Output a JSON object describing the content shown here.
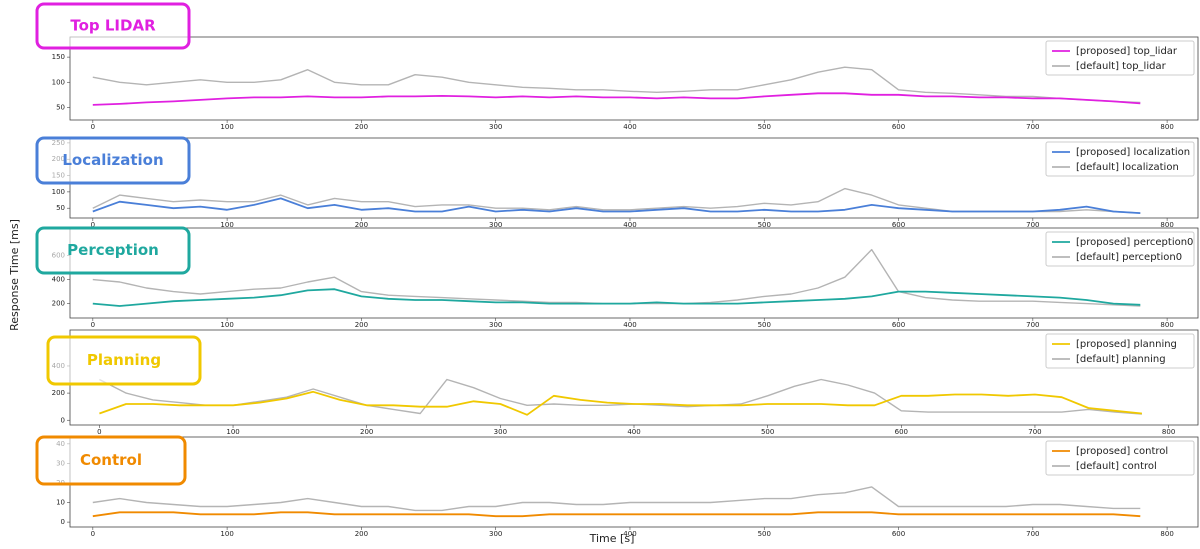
{
  "xlabel": "Time [s]",
  "ylabel": "Response Time [ms]",
  "chart_data": [
    {
      "type": "line",
      "label": "Top LIDAR",
      "x": [
        0,
        20,
        40,
        60,
        80,
        100,
        120,
        140,
        160,
        180,
        200,
        220,
        240,
        260,
        280,
        300,
        320,
        340,
        360,
        380,
        400,
        420,
        440,
        460,
        480,
        500,
        520,
        540,
        560,
        580,
        600,
        620,
        640,
        660,
        680,
        700,
        720,
        740,
        760,
        780
      ],
      "series": [
        {
          "name": "[proposed] top_lidar",
          "color": "#e020e0",
          "values": [
            55,
            57,
            60,
            62,
            65,
            68,
            70,
            70,
            72,
            70,
            70,
            72,
            72,
            73,
            72,
            70,
            72,
            70,
            72,
            70,
            70,
            68,
            70,
            68,
            68,
            72,
            75,
            78,
            78,
            75,
            75,
            72,
            72,
            70,
            70,
            68,
            68,
            65,
            62,
            58
          ]
        },
        {
          "name": "[default] top_lidar",
          "color": "#b4b4b4",
          "values": [
            110,
            100,
            95,
            100,
            105,
            100,
            100,
            105,
            125,
            100,
            95,
            95,
            115,
            110,
            100,
            95,
            90,
            88,
            85,
            85,
            82,
            80,
            82,
            85,
            85,
            95,
            105,
            120,
            130,
            125,
            85,
            80,
            78,
            75,
            72,
            72,
            68,
            65,
            62,
            60
          ]
        }
      ],
      "xlim": [
        -17,
        823
      ],
      "xticks": [
        0,
        100,
        200,
        300,
        400,
        500,
        600,
        700,
        800
      ],
      "ylim": [
        25,
        190
      ],
      "yticks": [
        50,
        100,
        150
      ]
    },
    {
      "type": "line",
      "label": "Localization",
      "x": [
        0,
        20,
        40,
        60,
        80,
        100,
        120,
        140,
        160,
        180,
        200,
        220,
        240,
        260,
        280,
        300,
        320,
        340,
        360,
        380,
        400,
        420,
        440,
        460,
        480,
        500,
        520,
        540,
        560,
        580,
        600,
        620,
        640,
        660,
        680,
        700,
        720,
        740,
        760,
        780
      ],
      "series": [
        {
          "name": "[proposed] localization",
          "color": "#4a7fd8",
          "values": [
            40,
            70,
            60,
            50,
            55,
            45,
            60,
            80,
            50,
            60,
            45,
            50,
            40,
            40,
            55,
            40,
            45,
            40,
            50,
            40,
            40,
            45,
            50,
            40,
            40,
            45,
            40,
            40,
            45,
            60,
            50,
            45,
            40,
            40,
            40,
            40,
            45,
            55,
            40,
            35
          ]
        },
        {
          "name": "[default] localization",
          "color": "#b4b4b4",
          "values": [
            50,
            90,
            80,
            70,
            75,
            70,
            70,
            90,
            60,
            80,
            70,
            70,
            55,
            60,
            60,
            50,
            50,
            45,
            55,
            45,
            45,
            50,
            55,
            50,
            55,
            65,
            60,
            70,
            110,
            90,
            60,
            50,
            40,
            40,
            40,
            40,
            40,
            45,
            40,
            35
          ]
        }
      ],
      "xlim": [
        -17,
        823
      ],
      "xticks": [
        0,
        100,
        200,
        300,
        400,
        500,
        600,
        700,
        800
      ],
      "ylim": [
        20,
        265
      ],
      "yticks": [
        50,
        100,
        150,
        200,
        250
      ]
    },
    {
      "type": "line",
      "label": "Perception",
      "x": [
        0,
        20,
        40,
        60,
        80,
        100,
        120,
        140,
        160,
        180,
        200,
        220,
        240,
        260,
        280,
        300,
        320,
        340,
        360,
        380,
        400,
        420,
        440,
        460,
        480,
        500,
        520,
        540,
        560,
        580,
        600,
        620,
        640,
        660,
        680,
        700,
        720,
        740,
        760,
        780
      ],
      "series": [
        {
          "name": "[proposed] perception0",
          "color": "#1fa89f",
          "values": [
            200,
            180,
            200,
            220,
            230,
            240,
            250,
            270,
            310,
            320,
            260,
            240,
            230,
            230,
            220,
            210,
            210,
            200,
            200,
            200,
            200,
            210,
            200,
            200,
            200,
            210,
            220,
            230,
            240,
            260,
            300,
            300,
            290,
            280,
            270,
            260,
            250,
            230,
            200,
            190
          ]
        },
        {
          "name": "[default] perception0",
          "color": "#b4b4b4",
          "values": [
            400,
            380,
            330,
            300,
            280,
            300,
            320,
            330,
            380,
            420,
            300,
            270,
            260,
            250,
            240,
            230,
            220,
            210,
            210,
            200,
            200,
            200,
            200,
            210,
            230,
            260,
            280,
            330,
            420,
            650,
            300,
            250,
            230,
            220,
            220,
            220,
            210,
            200,
            190,
            180
          ]
        }
      ],
      "xlim": [
        -17,
        823
      ],
      "xticks": [
        0,
        100,
        200,
        300,
        400,
        500,
        600,
        700,
        800
      ],
      "ylim": [
        80,
        830
      ],
      "yticks": [
        200,
        400,
        600
      ]
    },
    {
      "type": "line",
      "label": "Planning",
      "x": [
        0,
        20,
        40,
        60,
        80,
        100,
        120,
        140,
        160,
        180,
        200,
        220,
        240,
        260,
        280,
        300,
        320,
        340,
        360,
        380,
        400,
        420,
        440,
        460,
        480,
        500,
        520,
        540,
        560,
        580,
        600,
        620,
        640,
        660,
        680,
        700,
        720,
        740,
        760,
        780
      ],
      "series": [
        {
          "name": "[proposed] planning",
          "color": "#f0c800",
          "values": [
            50,
            120,
            120,
            110,
            110,
            110,
            130,
            160,
            210,
            150,
            110,
            110,
            100,
            100,
            140,
            120,
            40,
            180,
            150,
            130,
            120,
            120,
            110,
            110,
            110,
            120,
            120,
            120,
            110,
            110,
            180,
            180,
            190,
            190,
            180,
            190,
            170,
            90,
            70,
            50
          ]
        },
        {
          "name": "[default] planning",
          "color": "#b4b4b4",
          "values": [
            300,
            200,
            150,
            130,
            110,
            110,
            140,
            170,
            230,
            170,
            110,
            80,
            50,
            300,
            240,
            160,
            110,
            120,
            110,
            110,
            120,
            110,
            100,
            110,
            120,
            180,
            250,
            300,
            260,
            200,
            70,
            60,
            60,
            60,
            60,
            60,
            60,
            80,
            60,
            45
          ]
        }
      ],
      "xlim": [
        -22,
        822
      ],
      "xticks": [
        0,
        100,
        200,
        300,
        400,
        500,
        600,
        700,
        800
      ],
      "ylim": [
        -35,
        665
      ],
      "yticks": [
        0,
        200,
        400
      ]
    },
    {
      "type": "line",
      "label": "Control",
      "x": [
        0,
        20,
        40,
        60,
        80,
        100,
        120,
        140,
        160,
        180,
        200,
        220,
        240,
        260,
        280,
        300,
        320,
        340,
        360,
        380,
        400,
        420,
        440,
        460,
        480,
        500,
        520,
        540,
        560,
        580,
        600,
        620,
        640,
        660,
        680,
        700,
        720,
        740,
        760,
        780
      ],
      "series": [
        {
          "name": "[proposed] control",
          "color": "#f08a00",
          "values": [
            3,
            5,
            5,
            5,
            4,
            4,
            4,
            5,
            5,
            4,
            4,
            4,
            4,
            4,
            4,
            3,
            3,
            4,
            4,
            4,
            4,
            4,
            4,
            4,
            4,
            4,
            4,
            5,
            5,
            5,
            4,
            4,
            4,
            4,
            4,
            4,
            4,
            4,
            4,
            3
          ]
        },
        {
          "name": "[default] control",
          "color": "#b4b4b4",
          "values": [
            10,
            12,
            10,
            9,
            8,
            8,
            9,
            10,
            12,
            10,
            8,
            8,
            6,
            6,
            8,
            8,
            10,
            10,
            9,
            9,
            10,
            10,
            10,
            10,
            11,
            12,
            12,
            14,
            15,
            18,
            8,
            8,
            8,
            8,
            8,
            9,
            9,
            8,
            7,
            7
          ]
        }
      ],
      "xlim": [
        -17,
        823
      ],
      "xticks": [
        0,
        100,
        200,
        300,
        400,
        500,
        600,
        700,
        800
      ],
      "ylim": [
        -2.5,
        43.5
      ],
      "yticks": [
        0,
        10,
        20,
        30,
        40
      ]
    }
  ]
}
